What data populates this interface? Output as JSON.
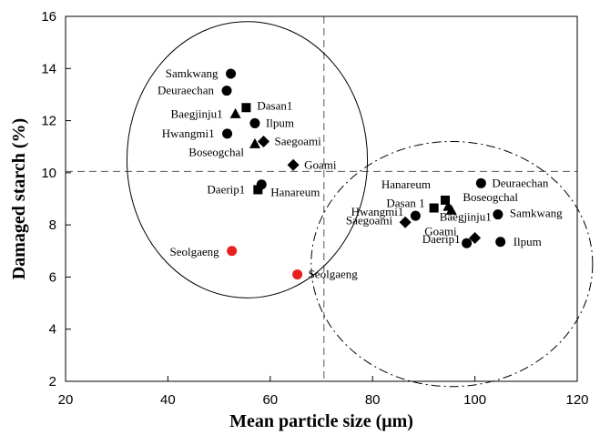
{
  "chart_data": {
    "type": "scatter",
    "title": "",
    "xlabel": "Mean particle size (μm)",
    "ylabel": "Damaged starch (%)",
    "xlim": [
      20,
      120
    ],
    "ylim": [
      2,
      16
    ],
    "xticks": [
      20,
      40,
      60,
      80,
      100,
      120
    ],
    "yticks": [
      2,
      4,
      6,
      8,
      10,
      12,
      14,
      16
    ],
    "grid": false,
    "reference_lines": {
      "x": 70.5,
      "y": 10.05,
      "style": "dashed"
    },
    "groups": [
      {
        "ellipse": "solid",
        "center": [
          55.5,
          10.5
        ],
        "radii": [
          23.5,
          5.3
        ]
      },
      {
        "ellipse": "dash-dot",
        "center": [
          95.5,
          6.5
        ],
        "radii": [
          27.5,
          4.7
        ]
      }
    ],
    "points": [
      {
        "name": "Samkwang",
        "x": 52.3,
        "y": 13.8,
        "marker": "circle",
        "color": "#000000"
      },
      {
        "name": "Deuraechan",
        "x": 51.5,
        "y": 13.15,
        "marker": "circle",
        "color": "#000000"
      },
      {
        "name": "Dasan1",
        "x": 55.3,
        "y": 12.5,
        "marker": "square",
        "color": "#000000"
      },
      {
        "name": "Baegjinju1",
        "x": 53.2,
        "y": 12.25,
        "marker": "triangle",
        "color": "#000000"
      },
      {
        "name": "Ilpum",
        "x": 57.0,
        "y": 11.9,
        "marker": "circle",
        "color": "#000000"
      },
      {
        "name": "Hwangmi1",
        "x": 51.6,
        "y": 11.5,
        "marker": "circle",
        "color": "#000000"
      },
      {
        "name": "Boseogchal",
        "x": 57.0,
        "y": 11.1,
        "marker": "triangle",
        "color": "#000000"
      },
      {
        "name": "Saegoami",
        "x": 58.7,
        "y": 11.2,
        "marker": "diamond",
        "color": "#000000"
      },
      {
        "name": "Goami",
        "x": 64.5,
        "y": 10.3,
        "marker": "diamond",
        "color": "#000000"
      },
      {
        "name": "Daerip1",
        "x": 57.6,
        "y": 9.35,
        "marker": "square",
        "color": "#000000"
      },
      {
        "name": "Hanareum",
        "x": 58.3,
        "y": 9.55,
        "marker": "circle",
        "color": "#000000"
      },
      {
        "name": "Seolgaeng",
        "x": 52.5,
        "y": 7.0,
        "marker": "circle",
        "color": "#e8201e"
      },
      {
        "name": "Seolgaeng",
        "x": 65.3,
        "y": 6.1,
        "marker": "circle",
        "color": "#e8201e"
      },
      {
        "name": "Deuraechan",
        "x": 101.2,
        "y": 9.6,
        "marker": "circle",
        "color": "#000000"
      },
      {
        "name": "Hanareum",
        "x": 94.2,
        "y": 8.95,
        "marker": "square",
        "color": "#000000"
      },
      {
        "name": "Boseogchal",
        "x": 94.8,
        "y": 8.7,
        "marker": "triangle",
        "color": "#000000"
      },
      {
        "name": "Dasan 1",
        "x": 92.0,
        "y": 8.65,
        "marker": "square",
        "color": "#000000"
      },
      {
        "name": "Baegjinju1",
        "x": 95.4,
        "y": 8.55,
        "marker": "triangle",
        "color": "#000000"
      },
      {
        "name": "Samkwang",
        "x": 104.5,
        "y": 8.4,
        "marker": "circle",
        "color": "#000000"
      },
      {
        "name": "Hwangmi1",
        "x": 88.4,
        "y": 8.35,
        "marker": "circle",
        "color": "#000000"
      },
      {
        "name": "Saegoami",
        "x": 86.4,
        "y": 8.1,
        "marker": "diamond",
        "color": "#000000"
      },
      {
        "name": "Goami",
        "x": 100.0,
        "y": 7.5,
        "marker": "diamond",
        "color": "#000000"
      },
      {
        "name": "Daerip1",
        "x": 98.4,
        "y": 7.3,
        "marker": "circle",
        "color": "#000000"
      },
      {
        "name": "Ilpum",
        "x": 105.0,
        "y": 7.35,
        "marker": "circle",
        "color": "#000000"
      }
    ]
  }
}
